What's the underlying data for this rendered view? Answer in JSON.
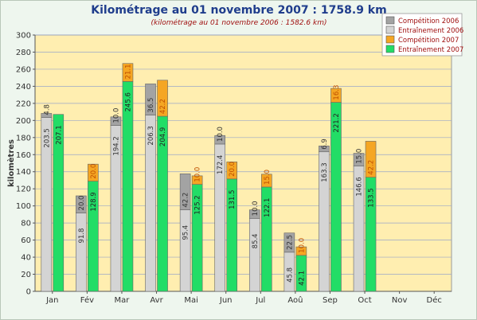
{
  "chart_data": {
    "type": "bar",
    "title": "Kilométrage au 01 novembre 2007 : 1758.9 km",
    "subtitle": "(kilométrage au 01 novembre 2006 : 1582.6 km)",
    "ylabel": "kilomètres",
    "xlabel": "",
    "ylim": [
      0,
      300
    ],
    "yticks": [
      0,
      20,
      40,
      60,
      80,
      100,
      120,
      140,
      160,
      180,
      200,
      220,
      240,
      260,
      280,
      300
    ],
    "categories": [
      "Jan",
      "Fév",
      "Mar",
      "Avr",
      "Mai",
      "Jun",
      "Jul",
      "Aoû",
      "Sep",
      "Oct",
      "Nov",
      "Déc"
    ],
    "grid": true,
    "legend_position": "top-right",
    "stacks": [
      {
        "name": "2006",
        "series": [
          {
            "name": "Entraînement 2006",
            "color": "#d4d4d4",
            "values": [
              203.5,
              91.8,
              194.2,
              206.3,
              95.4,
              172.4,
              85.4,
              45.8,
              163.3,
              146.6,
              null,
              null
            ]
          },
          {
            "name": "Compétition 2006",
            "color": "#a3a3a3",
            "values": [
              4.8,
              20.0,
              10.0,
              36.5,
              42.2,
              10.0,
              10.0,
              22.5,
              6.9,
              15.0,
              null,
              null
            ]
          }
        ]
      },
      {
        "name": "2007",
        "series": [
          {
            "name": "Entraînement 2007",
            "color": "#22dd66",
            "values": [
              207.1,
              128.9,
              245.6,
              204.9,
              125.2,
              131.5,
              122.1,
              42.1,
              221.2,
              133.5,
              null,
              null
            ]
          },
          {
            "name": "Compétition 2007",
            "color": "#f5a623",
            "values": [
              null,
              20.0,
              21.1,
              42.2,
              10.0,
              20.0,
              15.0,
              10.0,
              16.3,
              42.2,
              null,
              null
            ]
          }
        ]
      }
    ],
    "legend_order": [
      "Compétition 2006",
      "Entraînement 2006",
      "Compétition 2007",
      "Entraînement 2007"
    ]
  }
}
